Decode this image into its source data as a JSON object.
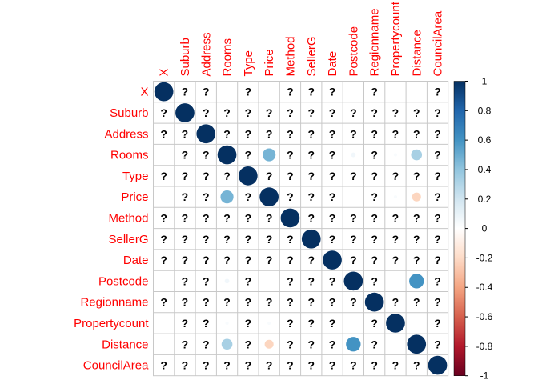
{
  "chart_data": {
    "type": "heatmap",
    "variables": [
      "X",
      "Suburb",
      "Address",
      "Rooms",
      "Type",
      "Price",
      "Method",
      "SellerG",
      "Date",
      "Postcode",
      "Regionname",
      "Propertycount",
      "Distance",
      "CouncilArea"
    ],
    "column_labels": [
      "X",
      "Suburb",
      "Address",
      "Rooms",
      "Type",
      "Price",
      "Method",
      "SellerG",
      "Date",
      "Postcode",
      "Regionname",
      "Propertycount",
      "Distance",
      "CouncilArea"
    ],
    "missing_marker": "?",
    "matrix": [
      [
        1,
        "?",
        "?",
        null,
        "?",
        null,
        "?",
        "?",
        "?",
        null,
        "?",
        null,
        null,
        "?"
      ],
      [
        "?",
        1,
        "?",
        "?",
        "?",
        "?",
        "?",
        "?",
        "?",
        "?",
        "?",
        "?",
        "?",
        "?"
      ],
      [
        "?",
        "?",
        1,
        "?",
        "?",
        "?",
        "?",
        "?",
        "?",
        "?",
        "?",
        "?",
        "?",
        "?"
      ],
      [
        null,
        "?",
        "?",
        1,
        "?",
        0.47,
        "?",
        "?",
        "?",
        0.06,
        "?",
        0.03,
        0.33,
        "?"
      ],
      [
        "?",
        "?",
        "?",
        "?",
        1,
        "?",
        "?",
        "?",
        "?",
        "?",
        "?",
        "?",
        "?",
        "?"
      ],
      [
        null,
        "?",
        "?",
        0.47,
        "?",
        1,
        "?",
        "?",
        "?",
        null,
        "?",
        0.03,
        -0.22,
        "?"
      ],
      [
        "?",
        "?",
        "?",
        "?",
        "?",
        "?",
        1,
        "?",
        "?",
        "?",
        "?",
        "?",
        "?",
        "?"
      ],
      [
        "?",
        "?",
        "?",
        "?",
        "?",
        "?",
        "?",
        1,
        "?",
        "?",
        "?",
        "?",
        "?",
        "?"
      ],
      [
        "?",
        "?",
        "?",
        "?",
        "?",
        "?",
        "?",
        "?",
        1,
        "?",
        "?",
        "?",
        "?",
        "?"
      ],
      [
        null,
        "?",
        "?",
        0.06,
        "?",
        null,
        "?",
        "?",
        "?",
        1,
        "?",
        null,
        0.6,
        "?"
      ],
      [
        "?",
        "?",
        "?",
        "?",
        "?",
        "?",
        "?",
        "?",
        "?",
        "?",
        1,
        "?",
        "?",
        "?"
      ],
      [
        null,
        "?",
        "?",
        0.03,
        "?",
        0.03,
        "?",
        "?",
        "?",
        null,
        "?",
        1,
        null,
        "?"
      ],
      [
        null,
        "?",
        "?",
        0.33,
        "?",
        -0.22,
        "?",
        "?",
        "?",
        0.6,
        "?",
        null,
        1,
        "?"
      ],
      [
        "?",
        "?",
        "?",
        "?",
        "?",
        "?",
        "?",
        "?",
        "?",
        "?",
        "?",
        "?",
        "?",
        1
      ]
    ],
    "colorbar": {
      "ticks": [
        "1",
        "0.8",
        "0.6",
        "0.4",
        "0.2",
        "0",
        "-0.2",
        "-0.4",
        "-0.6",
        "-0.8",
        "-1"
      ],
      "range": [
        -1,
        1
      ]
    },
    "colors": {
      "label": "#ff0000",
      "grid": "#c8c8c8",
      "scale": [
        "#67001F",
        "#B2182B",
        "#D6604D",
        "#F4A582",
        "#FDDBC7",
        "#FFFFFF",
        "#D1E5F0",
        "#92C5DE",
        "#4393C3",
        "#2166AC",
        "#053061"
      ]
    }
  }
}
